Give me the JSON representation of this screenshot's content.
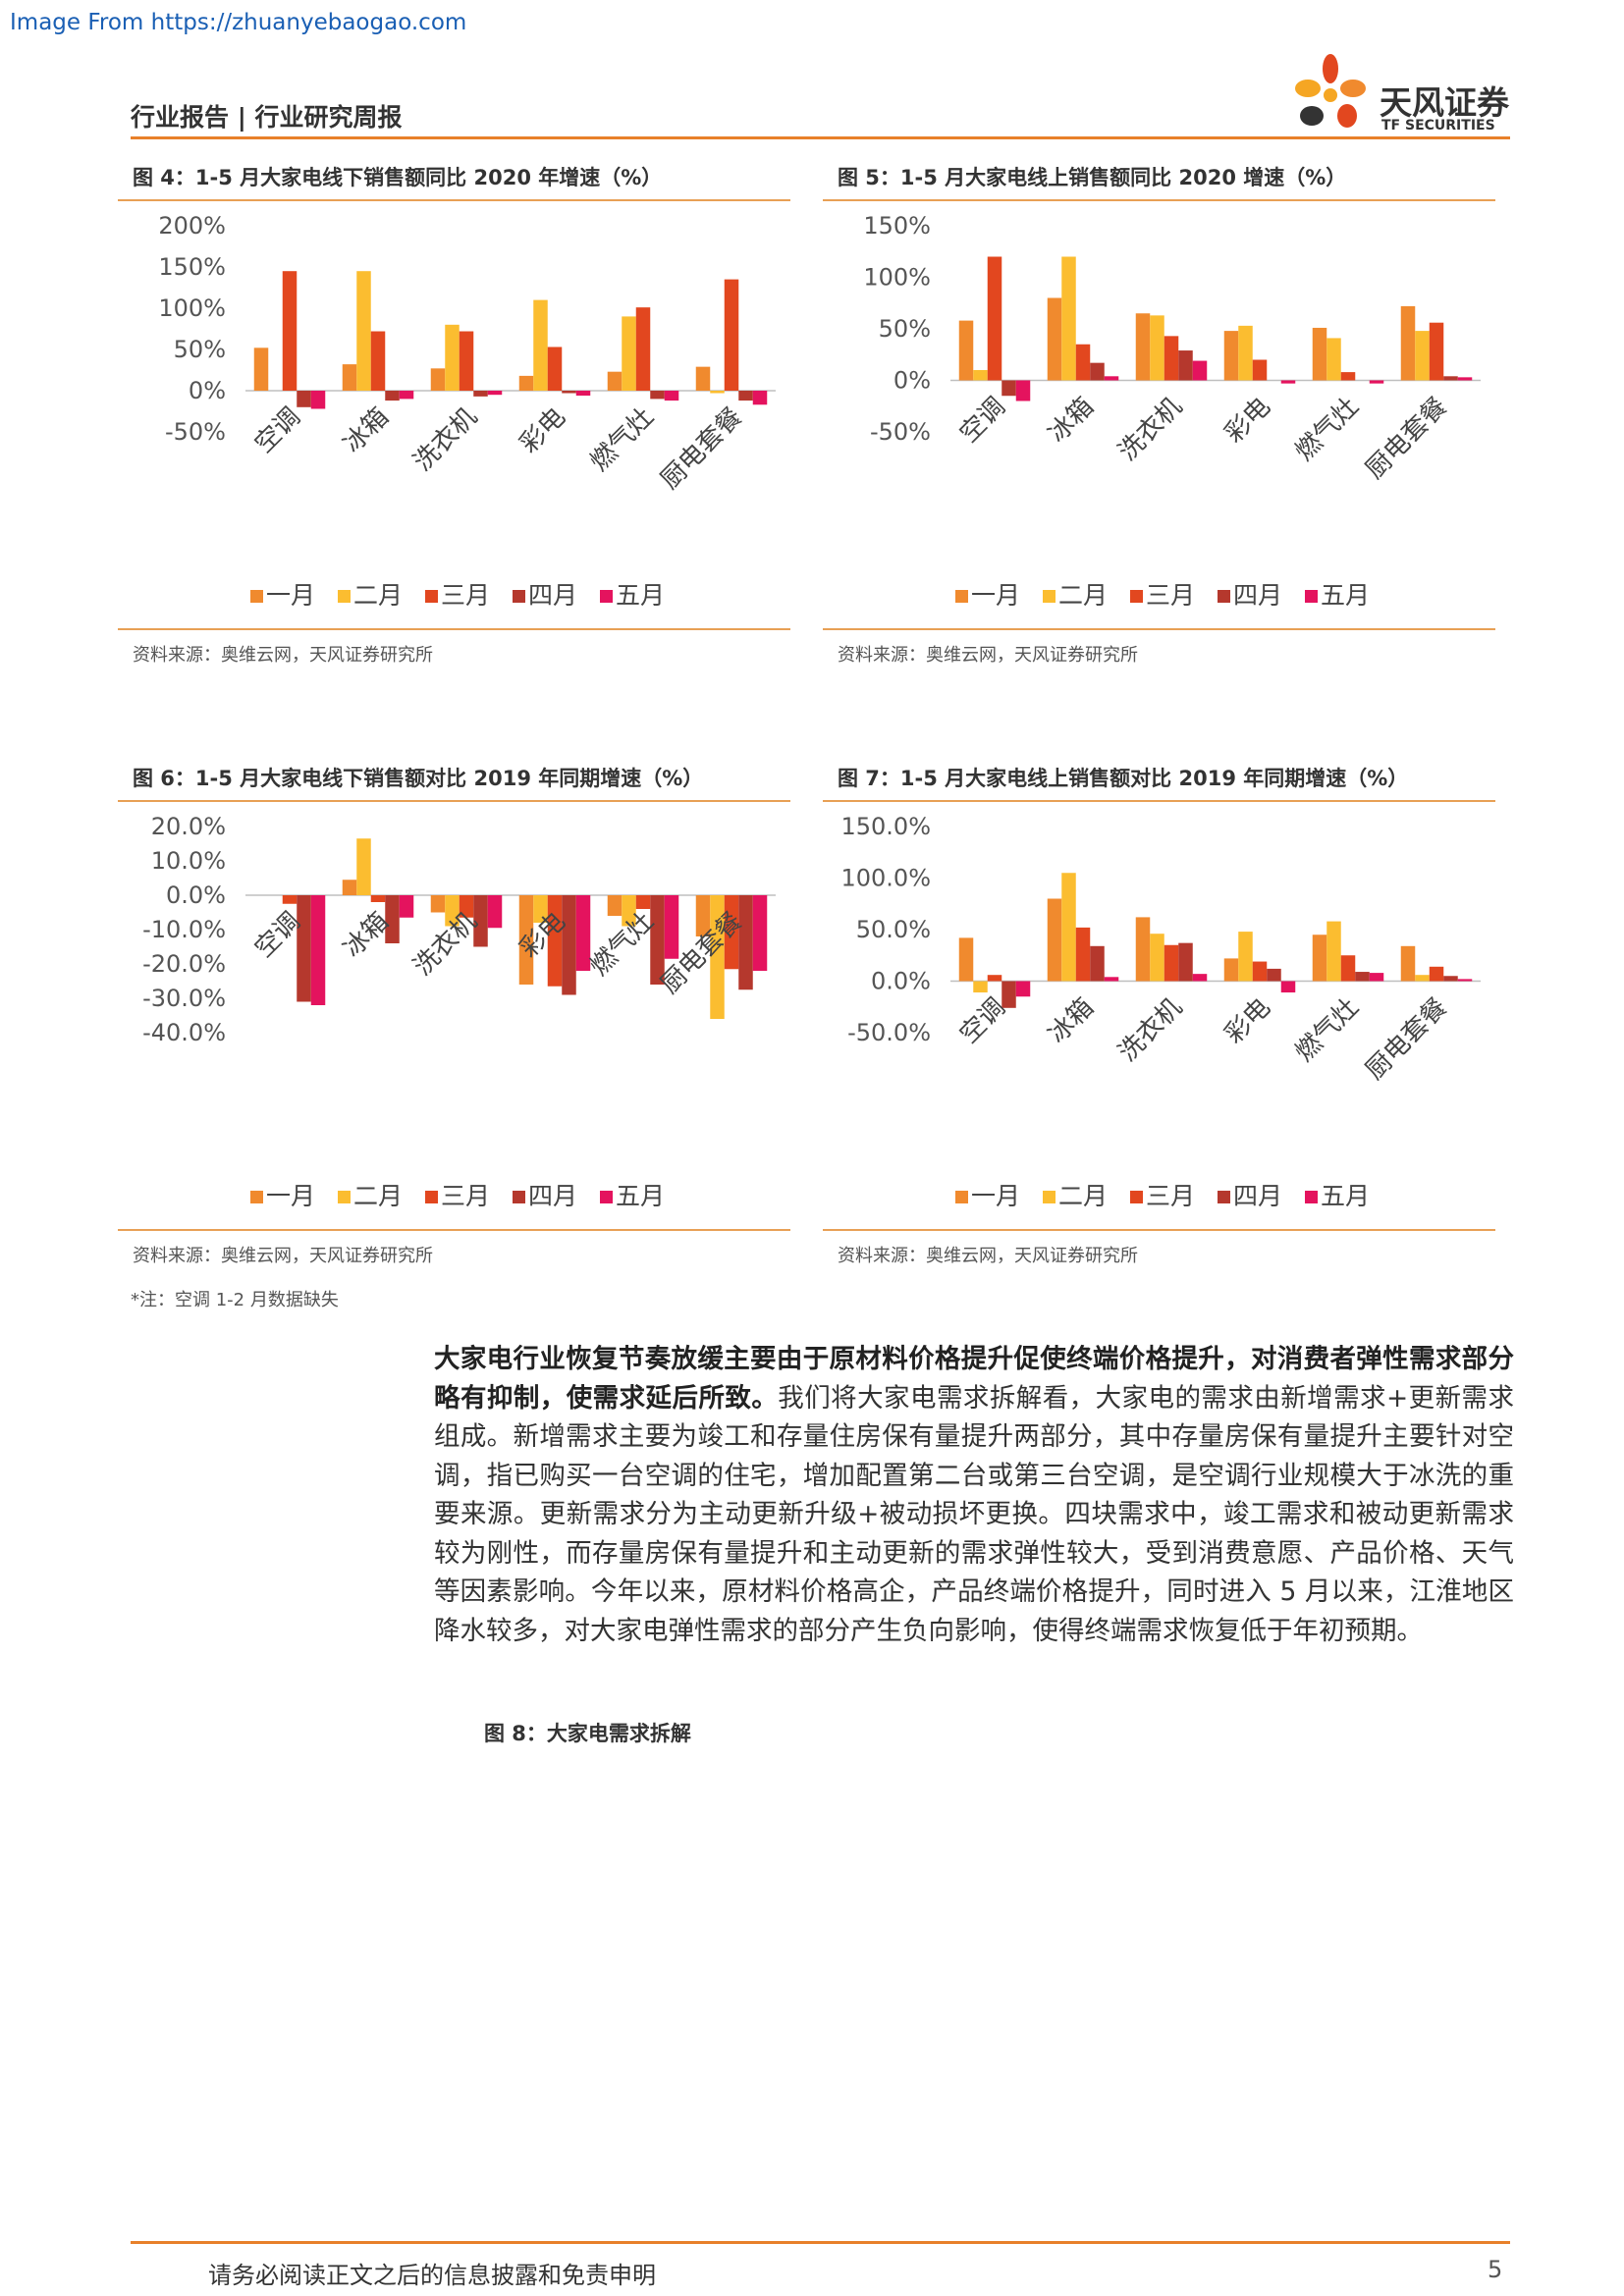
{
  "watermark": "Image From https://zhuanyebaogao.com",
  "header": {
    "title": "行业报告 | 行业研究周报",
    "logo_cn": "天风证券",
    "logo_en": "TF SECURITIES"
  },
  "colors": {
    "m1": "#f08a2e",
    "m2": "#fbbd30",
    "m3": "#e2471f",
    "m4": "#b5382d",
    "m5": "#e4135e",
    "accent": "#e8802a"
  },
  "figures": [
    {
      "title": "图 4：1-5 月大家电线下销售额同比 2020 年增速（%）",
      "source": "资料来源：奥维云网，天风证券研究所"
    },
    {
      "title": "图 5：1-5 月大家电线上销售额同比 2020 增速（%）",
      "source": "资料来源：奥维云网，天风证券研究所"
    },
    {
      "title": "图 6：1-5 月大家电线下销售额对比 2019 年同期增速（%）",
      "source": "资料来源：奥维云网，天风证券研究所"
    },
    {
      "title": "图 7：1-5 月大家电线上销售额对比 2019 年同期增速（%）",
      "source": "资料来源：奥维云网，天风证券研究所"
    }
  ],
  "chart_data": [
    {
      "type": "bar",
      "categories": [
        "空调",
        "冰箱",
        "洗衣机",
        "彩电",
        "燃气灶",
        "厨电套餐"
      ],
      "ylim": [
        -50,
        200
      ],
      "yticks": [
        -50,
        0,
        50,
        100,
        150,
        200
      ],
      "ytick_labels": [
        "-50%",
        "0%",
        "50%",
        "100%",
        "150%",
        "200%"
      ],
      "series": [
        {
          "name": "一月",
          "values": [
            52,
            32,
            27,
            18,
            23,
            29
          ]
        },
        {
          "name": "二月",
          "values": [
            0,
            145,
            80,
            110,
            90,
            -3
          ]
        },
        {
          "name": "三月",
          "values": [
            145,
            72,
            72,
            53,
            101,
            135
          ]
        },
        {
          "name": "四月",
          "values": [
            -20,
            -12,
            -7,
            -3,
            -10,
            -12
          ]
        },
        {
          "name": "五月",
          "values": [
            -22,
            -10,
            -5,
            -6,
            -12,
            -17
          ]
        }
      ]
    },
    {
      "type": "bar",
      "categories": [
        "空调",
        "冰箱",
        "洗衣机",
        "彩电",
        "燃气灶",
        "厨电套餐"
      ],
      "ylim": [
        -50,
        150
      ],
      "yticks": [
        -50,
        0,
        50,
        100,
        150
      ],
      "ytick_labels": [
        "-50%",
        "0%",
        "50%",
        "100%",
        "150%"
      ],
      "series": [
        {
          "name": "一月",
          "values": [
            58,
            80,
            65,
            48,
            51,
            72
          ]
        },
        {
          "name": "二月",
          "values": [
            10,
            120,
            63,
            53,
            41,
            48
          ]
        },
        {
          "name": "三月",
          "values": [
            120,
            35,
            43,
            20,
            8,
            56
          ]
        },
        {
          "name": "四月",
          "values": [
            -15,
            17,
            29,
            0,
            0,
            4
          ]
        },
        {
          "name": "五月",
          "values": [
            -20,
            4,
            19,
            -3,
            -3,
            3
          ]
        }
      ]
    },
    {
      "type": "bar",
      "categories": [
        "空调",
        "冰箱",
        "洗衣机",
        "彩电",
        "燃气灶",
        "厨电套餐"
      ],
      "ylim": [
        -40,
        20
      ],
      "yticks": [
        -40,
        -30,
        -20,
        -10,
        0,
        10,
        20
      ],
      "ytick_labels": [
        "-40.0%",
        "-30.0%",
        "-20.0%",
        "-10.0%",
        "0.0%",
        "10.0%",
        "20.0%"
      ],
      "series": [
        {
          "name": "一月",
          "values": [
            0,
            4.5,
            -5,
            -26,
            -6,
            -12
          ]
        },
        {
          "name": "二月",
          "values": [
            0,
            16.5,
            -9,
            -8,
            -9,
            -36
          ]
        },
        {
          "name": "三月",
          "values": [
            -2.5,
            -2,
            -6.5,
            -26.5,
            -4,
            -21.5
          ]
        },
        {
          "name": "四月",
          "values": [
            -31,
            -14,
            -15,
            -29,
            -26,
            -27.5
          ]
        },
        {
          "name": "五月",
          "values": [
            -32,
            -6.5,
            -9.5,
            -22,
            -18.5,
            -22
          ]
        }
      ]
    },
    {
      "type": "bar",
      "categories": [
        "空调",
        "冰箱",
        "洗衣机",
        "彩电",
        "燃气灶",
        "厨电套餐"
      ],
      "ylim": [
        -50,
        150
      ],
      "yticks": [
        -50,
        0,
        50,
        100,
        150
      ],
      "ytick_labels": [
        "-50.0%",
        "0.0%",
        "50.0%",
        "100.0%",
        "150.0%"
      ],
      "series": [
        {
          "name": "一月",
          "values": [
            42,
            80,
            62,
            22,
            45,
            34
          ]
        },
        {
          "name": "二月",
          "values": [
            -11,
            105,
            46,
            48,
            58,
            6
          ]
        },
        {
          "name": "三月",
          "values": [
            6,
            52,
            35,
            19,
            25,
            14
          ]
        },
        {
          "name": "四月",
          "values": [
            -26,
            34,
            37,
            12,
            9,
            5
          ]
        },
        {
          "name": "五月",
          "values": [
            -15,
            4,
            7,
            -11,
            8,
            2
          ]
        }
      ]
    }
  ],
  "note": "*注：空调 1-2 月数据缺失",
  "body": {
    "bold": "大家电行业恢复节奏放缓主要由于原材料价格提升促使终端价格提升，对消费者弹性需求部分略有抑制，使需求延后所致。",
    "text": "我们将大家电需求拆解看，大家电的需求由新增需求+更新需求组成。新增需求主要为竣工和存量住房保有量提升两部分，其中存量房保有量提升主要针对空调，指已购买一台空调的住宅，增加配置第二台或第三台空调，是空调行业规模大于冰洗的重要来源。更新需求分为主动更新升级+被动损坏更换。四块需求中，竣工需求和被动更新需求较为刚性，而存量房保有量提升和主动更新的需求弹性较大，受到消费意愿、产品价格、天气等因素影响。今年以来，原材料价格高企，产品终端价格提升，同时进入 5 月以来，江淮地区降水较多，对大家电弹性需求的部分产生负向影响，使得终端需求恢复低于年初预期。"
  },
  "fig8_title": "图 8：大家电需求拆解",
  "footer": {
    "text": "请务必阅读正文之后的信息披露和免责申明",
    "page": "5"
  }
}
